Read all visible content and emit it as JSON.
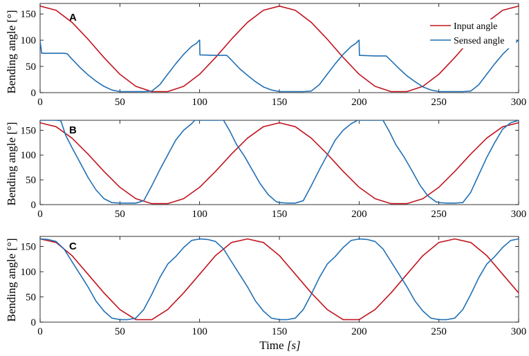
{
  "colors": {
    "input": "#c0141e",
    "sensed": "#1f6fb4"
  },
  "xlabel_main": "Time ",
  "xlabel_unit": "[s]",
  "chart_data": [
    {
      "type": "line",
      "panel_label": "A",
      "xlim": [
        0,
        300
      ],
      "ylim": [
        0,
        170
      ],
      "xticks": [
        "0",
        "50",
        "100",
        "150",
        "200",
        "250",
        "300"
      ],
      "yticks": [
        "0",
        "50",
        "100",
        "150"
      ],
      "ylabel": "Bending angle [°]",
      "legend": {
        "position": "top-right",
        "entries": [
          "Input angle",
          "Sensed angle"
        ]
      },
      "series": [
        {
          "name": "Input angle",
          "x": [
            0,
            10,
            20,
            30,
            40,
            50,
            60,
            70,
            80,
            90,
            100,
            110,
            120,
            130,
            140,
            150,
            160,
            170,
            180,
            190,
            200,
            210,
            220,
            230,
            240,
            250,
            260,
            270,
            280,
            290,
            300
          ],
          "y": [
            165,
            157,
            134,
            102,
            67,
            35,
            12,
            2,
            2,
            12,
            35,
            67,
            102,
            134,
            157,
            165,
            157,
            134,
            102,
            67,
            35,
            12,
            2,
            2,
            12,
            35,
            67,
            102,
            134,
            157,
            165
          ]
        },
        {
          "name": "Sensed angle",
          "x": [
            0,
            1,
            15,
            17,
            20,
            25,
            30,
            35,
            40,
            45,
            50,
            55,
            60,
            65,
            70,
            75,
            80,
            85,
            90,
            95,
            98,
            99.5,
            100,
            100.2,
            110,
            117,
            120,
            125,
            130,
            135,
            140,
            145,
            150,
            155,
            160,
            165,
            170,
            175,
            180,
            185,
            190,
            195,
            198,
            199.5,
            200,
            200.2,
            210,
            217,
            220,
            225,
            230,
            235,
            240,
            245,
            250,
            255,
            260,
            265,
            270,
            275,
            280,
            285,
            290,
            295,
            300
          ],
          "y": [
            98,
            75,
            75,
            74,
            64,
            48,
            34,
            22,
            12,
            5,
            2,
            2,
            2,
            2,
            3,
            15,
            35,
            55,
            73,
            88,
            94,
            99,
            100,
            72,
            71,
            71,
            62,
            46,
            33,
            21,
            11,
            5,
            2,
            2,
            2,
            2,
            3,
            15,
            35,
            55,
            73,
            88,
            94,
            99,
            100,
            71,
            70,
            70,
            61,
            46,
            32,
            21,
            11,
            5,
            2,
            2,
            2,
            2,
            3,
            15,
            35,
            55,
            73,
            88,
            100
          ]
        }
      ]
    },
    {
      "type": "line",
      "panel_label": "B",
      "xlim": [
        0,
        300
      ],
      "ylim": [
        0,
        170
      ],
      "xticks": [
        "0",
        "50",
        "100",
        "150",
        "200",
        "250",
        "300"
      ],
      "yticks": [
        "0",
        "50",
        "100",
        "150"
      ],
      "ylabel": "Bending angle [°]",
      "series": [
        {
          "name": "Input angle",
          "x": [
            0,
            10,
            20,
            30,
            40,
            50,
            60,
            70,
            80,
            90,
            100,
            110,
            120,
            130,
            140,
            150,
            160,
            170,
            180,
            190,
            200,
            210,
            220,
            230,
            240,
            250,
            260,
            270,
            280,
            290,
            300
          ],
          "y": [
            165,
            157,
            134,
            102,
            67,
            35,
            12,
            2,
            2,
            12,
            35,
            67,
            102,
            134,
            157,
            165,
            157,
            134,
            102,
            67,
            35,
            12,
            2,
            2,
            12,
            35,
            67,
            102,
            134,
            157,
            165
          ]
        },
        {
          "name": "Sensed angle",
          "x": [
            0,
            10,
            13,
            16,
            20,
            25,
            30,
            35,
            40,
            45,
            50,
            55,
            60,
            65,
            70,
            75,
            80,
            85,
            90,
            95,
            97,
            99,
            115,
            119,
            123,
            128,
            133,
            138,
            143,
            148,
            150,
            155,
            160,
            165,
            170,
            175,
            180,
            185,
            190,
            195,
            199,
            215,
            219,
            223,
            228,
            233,
            238,
            243,
            248,
            250,
            255,
            260,
            265,
            270,
            275,
            280,
            285,
            290,
            295,
            300
          ],
          "y": [
            170,
            170,
            169,
            140,
            115,
            85,
            55,
            30,
            12,
            4,
            3,
            3,
            3,
            8,
            38,
            70,
            100,
            130,
            150,
            163,
            170,
            170,
            170,
            148,
            122,
            98,
            70,
            42,
            20,
            6,
            4,
            3,
            3,
            8,
            38,
            70,
            100,
            130,
            150,
            163,
            170,
            170,
            147,
            121,
            97,
            69,
            40,
            18,
            6,
            4,
            3,
            3,
            4,
            25,
            60,
            95,
            125,
            152,
            165,
            170
          ]
        }
      ]
    },
    {
      "type": "line",
      "panel_label": "C",
      "xlim": [
        0,
        300
      ],
      "ylim": [
        0,
        170
      ],
      "xticks": [
        "0",
        "50",
        "100",
        "150",
        "200",
        "250",
        "300"
      ],
      "yticks": [
        "0",
        "50",
        "100",
        "150"
      ],
      "ylabel": "Bending angle [°]",
      "series": [
        {
          "name": "Input angle",
          "x": [
            0,
            10,
            20,
            30,
            40,
            50,
            60,
            70,
            80,
            90,
            100,
            110,
            120,
            130,
            140,
            150,
            160,
            170,
            180,
            190,
            200,
            210,
            220,
            230,
            240,
            250,
            260,
            270,
            280,
            290,
            300
          ],
          "y": [
            165,
            158,
            132,
            95,
            58,
            25,
            5,
            5,
            25,
            58,
            95,
            132,
            158,
            165,
            158,
            132,
            95,
            58,
            25,
            5,
            5,
            25,
            58,
            95,
            132,
            158,
            165,
            158,
            132,
            95,
            58
          ]
        },
        {
          "name": "Sensed angle",
          "x": [
            0,
            5,
            10,
            15,
            20,
            25,
            30,
            35,
            40,
            45,
            50,
            55,
            60,
            65,
            70,
            75,
            80,
            85,
            90,
            95,
            100,
            105,
            110,
            115,
            120,
            125,
            130,
            135,
            140,
            145,
            150,
            155,
            160,
            165,
            170,
            175,
            180,
            185,
            190,
            195,
            200,
            205,
            210,
            215,
            220,
            225,
            230,
            235,
            240,
            245,
            250,
            255,
            260,
            265,
            270,
            275,
            280,
            285,
            290,
            295,
            300
          ],
          "y": [
            165,
            164,
            160,
            145,
            120,
            95,
            70,
            42,
            22,
            8,
            5,
            5,
            8,
            25,
            55,
            88,
            115,
            130,
            148,
            162,
            165,
            164,
            160,
            145,
            120,
            95,
            70,
            42,
            22,
            8,
            5,
            5,
            8,
            25,
            55,
            88,
            115,
            130,
            148,
            162,
            165,
            164,
            160,
            145,
            120,
            95,
            70,
            42,
            22,
            8,
            5,
            5,
            8,
            25,
            55,
            88,
            115,
            130,
            148,
            162,
            165
          ]
        }
      ]
    }
  ]
}
